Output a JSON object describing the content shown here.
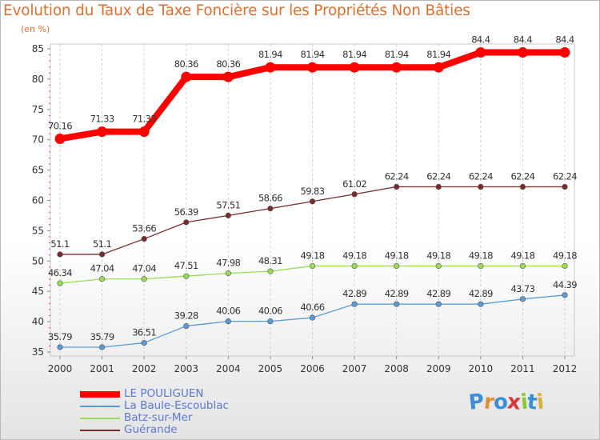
{
  "chart_data": {
    "type": "line",
    "title": "Evolution du Taux de Taxe Foncière sur les Propriétés Non Bâties",
    "unit_label": "(en %)",
    "x": [
      "2000",
      "2001",
      "2002",
      "2003",
      "2004",
      "2005",
      "2006",
      "2007",
      "2008",
      "2009",
      "2010",
      "2011",
      "2012"
    ],
    "ylim": [
      35,
      85
    ],
    "yticks": [
      35,
      40,
      45,
      50,
      55,
      60,
      65,
      70,
      75,
      80,
      85
    ],
    "grid": "vertical dashed",
    "legend_position": "bottom-left",
    "series": [
      {
        "name": "LE POULIGUEN",
        "color": "#ff0000",
        "values": [
          70.16,
          71.33,
          71.33,
          80.36,
          80.36,
          81.94,
          81.94,
          81.94,
          81.94,
          81.94,
          84.4,
          84.4,
          84.4
        ],
        "labels": [
          "70.16",
          "71.33",
          "71.33",
          "80.36",
          "80.36",
          "81.94",
          "81.94",
          "81.94",
          "81.94",
          "81.94",
          "84.4",
          "84.4",
          "84.4"
        ]
      },
      {
        "name": "La Baule-Escoublac",
        "color": "#5b9bd5",
        "values": [
          35.79,
          35.79,
          36.51,
          39.28,
          40.06,
          40.06,
          40.66,
          42.89,
          42.89,
          42.89,
          42.89,
          43.73,
          44.39
        ],
        "labels": [
          "35.79",
          "35.79",
          "36.51",
          "39.28",
          "40.06",
          "40.06",
          "40.66",
          "42.89",
          "42.89",
          "42.89",
          "42.89",
          "43.73",
          "44.39"
        ]
      },
      {
        "name": "Batz-sur-Mer",
        "color": "#99dd55",
        "values": [
          46.34,
          47.04,
          47.04,
          47.51,
          47.98,
          48.31,
          49.18,
          49.18,
          49.18,
          49.18,
          49.18,
          49.18,
          49.18
        ],
        "labels": [
          "46.34",
          "47.04",
          "47.04",
          "47.51",
          "47.98",
          "48.31",
          "49.18",
          "49.18",
          "49.18",
          "49.18",
          "49.18",
          "49.18",
          "49.18"
        ]
      },
      {
        "name": "Guérande",
        "color": "#7a2a2a",
        "values": [
          51.1,
          51.1,
          53.66,
          56.39,
          57.51,
          58.66,
          59.83,
          61.02,
          62.24,
          62.24,
          62.24,
          62.24,
          62.24
        ],
        "labels": [
          "51.1",
          "51.1",
          "53.66",
          "56.39",
          "57.51",
          "58.66",
          "59.83",
          "61.02",
          "62.24",
          "62.24",
          "62.24",
          "62.24",
          "62.24"
        ]
      }
    ]
  },
  "brand": {
    "letters": [
      "P",
      "r",
      "o",
      "x",
      "i",
      "t",
      "i"
    ]
  }
}
